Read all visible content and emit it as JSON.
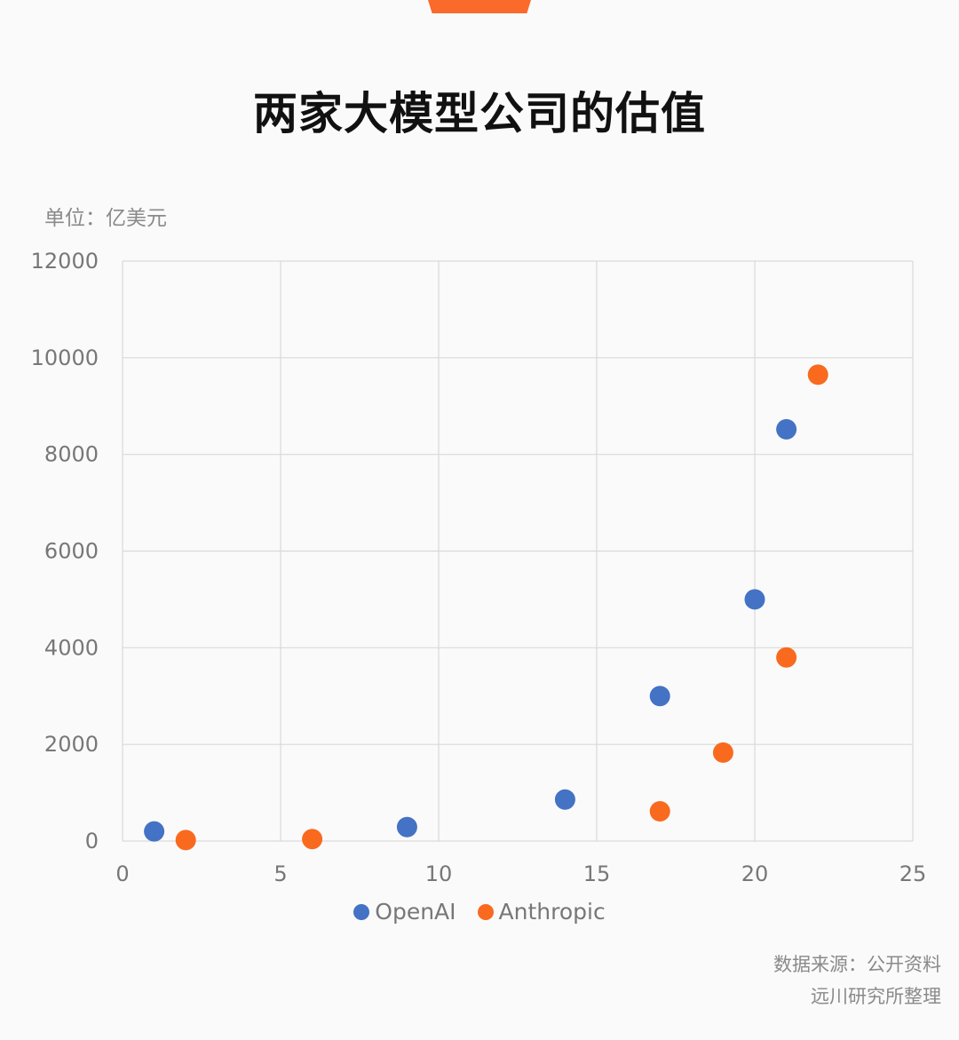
{
  "header": {
    "title": "两家大模型公司的估值"
  },
  "unit_label": "单位：亿美元",
  "source": {
    "line1": "数据来源：公开资料",
    "line2": "远川研究所整理"
  },
  "colors": {
    "openai": "#4472c4",
    "anthropic": "#f96a1f",
    "accent": "#f96a2b",
    "grid": "#d9d9d9"
  },
  "chart_data": {
    "type": "scatter",
    "title": "两家大模型公司的估值",
    "xlabel": "",
    "ylabel": "单位：亿美元",
    "xlim": [
      0,
      25
    ],
    "ylim": [
      0,
      12000
    ],
    "xticks": [
      0,
      5,
      10,
      15,
      20,
      25
    ],
    "yticks": [
      0,
      2000,
      4000,
      6000,
      8000,
      10000,
      12000
    ],
    "grid": true,
    "legend_position": "bottom",
    "series": [
      {
        "name": "OpenAI",
        "color": "#4472c4",
        "points": [
          [
            1,
            200
          ],
          [
            9,
            290
          ],
          [
            14,
            860
          ],
          [
            17,
            3000
          ],
          [
            20,
            5000
          ],
          [
            21,
            8520
          ]
        ]
      },
      {
        "name": "Anthropic",
        "color": "#f96a1f",
        "points": [
          [
            2,
            20
          ],
          [
            6,
            41
          ],
          [
            17,
            615
          ],
          [
            19,
            1830
          ],
          [
            21,
            3800
          ],
          [
            22,
            9650
          ]
        ]
      }
    ]
  }
}
